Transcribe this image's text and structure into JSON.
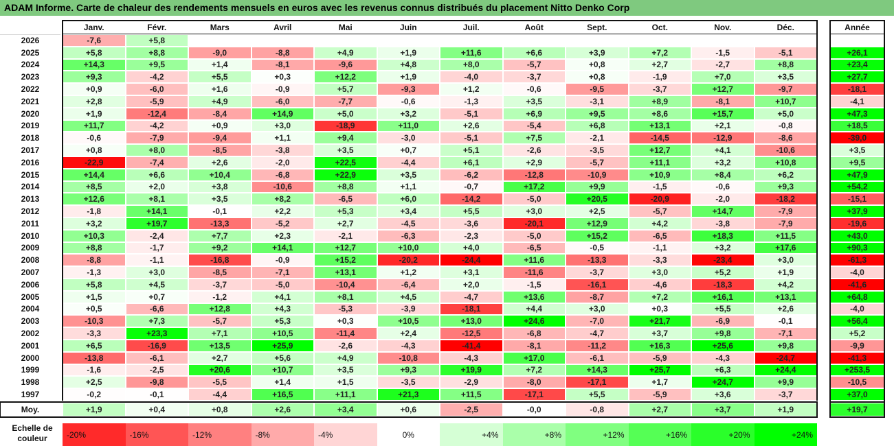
{
  "title": "ADAM Informe. Carte de chaleur des rendements mensuels en euros avec les revenus connus distribués du placement Nitto Denko Corp",
  "chart_data": {
    "type": "heatmap",
    "columns": [
      "Janv.",
      "Févr.",
      "Mars",
      "Avril",
      "Mai",
      "Juin",
      "Juil.",
      "Août",
      "Sept.",
      "Oct.",
      "Nov.",
      "Déc."
    ],
    "year_column_label": "Année",
    "avg_row_label": "Moy.",
    "rows": [
      {
        "year": "2026",
        "months": [
          "-7,6",
          "+5,8",
          "",
          "",
          "",
          "",
          "",
          "",
          "",
          "",
          "",
          ""
        ],
        "annual": ""
      },
      {
        "year": "2025",
        "months": [
          "+5,8",
          "+8,8",
          "-9,0",
          "-8,8",
          "+4,9",
          "+1,9",
          "+11,6",
          "+6,6",
          "+3,9",
          "+7,2",
          "-1,5",
          "-5,1"
        ],
        "annual": "+26,1"
      },
      {
        "year": "2024",
        "months": [
          "+14,3",
          "+9,5",
          "+1,4",
          "-8,1",
          "-9,6",
          "+4,8",
          "+8,0",
          "-5,7",
          "+0,8",
          "+2,7",
          "-2,7",
          "+8,8"
        ],
        "annual": "+23,4"
      },
      {
        "year": "2023",
        "months": [
          "+9,3",
          "-4,2",
          "+5,5",
          "+0,3",
          "+12,2",
          "+1,9",
          "-4,0",
          "-3,7",
          "+0,8",
          "-1,9",
          "+7,0",
          "+3,5"
        ],
        "annual": "+27,7"
      },
      {
        "year": "2022",
        "months": [
          "+0,9",
          "-6,0",
          "+1,6",
          "-0,9",
          "+5,7",
          "-9,3",
          "+1,2",
          "-0,6",
          "-9,5",
          "-3,7",
          "+12,7",
          "-9,7"
        ],
        "annual": "-18,1"
      },
      {
        "year": "2021",
        "months": [
          "+2,8",
          "-5,9",
          "+4,9",
          "-6,0",
          "-7,7",
          "-0,6",
          "-1,3",
          "+3,5",
          "-3,1",
          "+8,9",
          "-8,1",
          "+10,7"
        ],
        "annual": "-4,1"
      },
      {
        "year": "2020",
        "months": [
          "+1,9",
          "-12,4",
          "-8,4",
          "+14,9",
          "+5,0",
          "+3,2",
          "-5,1",
          "+6,9",
          "+9,5",
          "+8,6",
          "+15,7",
          "+5,0"
        ],
        "annual": "+47,3"
      },
      {
        "year": "2019",
        "months": [
          "+11,7",
          "-4,2",
          "+0,9",
          "+3,0",
          "-18,9",
          "+11,0",
          "+2,6",
          "-5,4",
          "+6,8",
          "+13,1",
          "+2,1",
          "-0,8"
        ],
        "annual": "+18,5"
      },
      {
        "year": "2018",
        "months": [
          "-0,6",
          "-7,9",
          "-9,4",
          "+1,1",
          "+9,4",
          "-3,0",
          "-5,1",
          "+7,5",
          "-2,1",
          "-14,5",
          "-12,9",
          "-8,6"
        ],
        "annual": "-39,0"
      },
      {
        "year": "2017",
        "months": [
          "+0,8",
          "+8,0",
          "-8,5",
          "-3,8",
          "+3,5",
          "+0,7",
          "+5,1",
          "-2,6",
          "-3,5",
          "+12,7",
          "+4,1",
          "-10,6"
        ],
        "annual": "+3,5"
      },
      {
        "year": "2016",
        "months": [
          "-22,9",
          "-7,4",
          "+2,6",
          "-2,0",
          "+22,5",
          "-4,4",
          "+6,1",
          "+2,9",
          "-5,7",
          "+11,1",
          "+3,2",
          "+10,8"
        ],
        "annual": "+9,5"
      },
      {
        "year": "2015",
        "months": [
          "+14,4",
          "+6,6",
          "+10,4",
          "-6,8",
          "+22,9",
          "+3,5",
          "-6,2",
          "-12,8",
          "-10,9",
          "+10,9",
          "+8,4",
          "+6,2"
        ],
        "annual": "+47,9"
      },
      {
        "year": "2014",
        "months": [
          "+8,5",
          "+2,0",
          "+3,8",
          "-10,6",
          "+8,8",
          "+1,1",
          "-0,7",
          "+17,2",
          "+9,9",
          "-1,5",
          "-0,6",
          "+9,3"
        ],
        "annual": "+54,2"
      },
      {
        "year": "2013",
        "months": [
          "+12,6",
          "+8,1",
          "+3,5",
          "+8,2",
          "-6,5",
          "+6,0",
          "-14,2",
          "-5,0",
          "+20,5",
          "-20,9",
          "-2,0",
          "-18,2"
        ],
        "annual": "-15,1"
      },
      {
        "year": "2012",
        "months": [
          "-1,8",
          "+14,1",
          "-0,1",
          "+2,2",
          "+5,3",
          "+3,4",
          "+5,5",
          "+3,0",
          "+2,5",
          "-5,7",
          "+14,7",
          "-7,9"
        ],
        "annual": "+37,9"
      },
      {
        "year": "2011",
        "months": [
          "+3,2",
          "+19,7",
          "-13,3",
          "-5,2",
          "+2,7",
          "-4,5",
          "-3,6",
          "-20,1",
          "+12,9",
          "+4,2",
          "-3,8",
          "-7,9"
        ],
        "annual": "-19,6"
      },
      {
        "year": "2010",
        "months": [
          "+10,3",
          "-2,4",
          "+7,7",
          "+2,3",
          "-2,1",
          "-6,3",
          "-2,3",
          "-5,0",
          "+15,2",
          "-6,5",
          "+18,3",
          "+11,5"
        ],
        "annual": "+43,0"
      },
      {
        "year": "2009",
        "months": [
          "+8,8",
          "-1,7",
          "+9,2",
          "+14,1",
          "+12,7",
          "+10,0",
          "+4,0",
          "-6,5",
          "-0,5",
          "-1,1",
          "+3,2",
          "+17,6"
        ],
        "annual": "+90,3"
      },
      {
        "year": "2008",
        "months": [
          "-8,8",
          "-1,1",
          "-16,8",
          "-0,9",
          "+15,2",
          "-20,2",
          "-24,4",
          "+11,6",
          "-13,3",
          "-3,3",
          "-23,4",
          "+3,0"
        ],
        "annual": "-61,3"
      },
      {
        "year": "2007",
        "months": [
          "-1,3",
          "+3,0",
          "-8,5",
          "-7,1",
          "+13,1",
          "+1,2",
          "+3,1",
          "-11,6",
          "-3,7",
          "+3,0",
          "+5,2",
          "+1,9"
        ],
        "annual": "-4,0"
      },
      {
        "year": "2006",
        "months": [
          "+5,8",
          "+4,5",
          "-3,7",
          "-5,0",
          "-10,4",
          "-6,4",
          "+2,0",
          "-1,5",
          "-16,1",
          "-4,6",
          "-18,3",
          "+4,2"
        ],
        "annual": "-41,6"
      },
      {
        "year": "2005",
        "months": [
          "+1,5",
          "+0,7",
          "-1,2",
          "+4,1",
          "+8,1",
          "+4,5",
          "-4,7",
          "+13,6",
          "-8,7",
          "+7,2",
          "+16,1",
          "+13,1"
        ],
        "annual": "+64,8"
      },
      {
        "year": "2004",
        "months": [
          "+0,5",
          "-6,6",
          "+12,8",
          "+4,3",
          "-5,3",
          "-3,9",
          "-18,1",
          "+4,4",
          "+3,0",
          "+0,3",
          "+5,5",
          "+2,6"
        ],
        "annual": "-4,0"
      },
      {
        "year": "2003",
        "months": [
          "-10,3",
          "+7,3",
          "-5,7",
          "+5,3",
          "+0,3",
          "+10,5",
          "+13,0",
          "+24,6",
          "-7,0",
          "+21,7",
          "-6,9",
          "-0,1"
        ],
        "annual": "+56,4"
      },
      {
        "year": "2002",
        "months": [
          "-3,3",
          "+23,3",
          "+7,1",
          "+10,5",
          "-11,4",
          "+2,4",
          "-12,5",
          "-6,8",
          "-4,7",
          "+3,7",
          "+9,8",
          "-7,1"
        ],
        "annual": "+5,2"
      },
      {
        "year": "2001",
        "months": [
          "+6,5",
          "-16,9",
          "+13,5",
          "+25,9",
          "-2,6",
          "-4,3",
          "-41,4",
          "-8,1",
          "-11,2",
          "+16,3",
          "+25,6",
          "+9,8"
        ],
        "annual": "-9,9"
      },
      {
        "year": "2000",
        "months": [
          "-13,8",
          "-6,1",
          "+2,7",
          "+5,6",
          "+4,9",
          "-10,8",
          "-4,3",
          "+17,0",
          "-6,1",
          "-5,9",
          "-4,3",
          "-24,7"
        ],
        "annual": "-41,3"
      },
      {
        "year": "1999",
        "months": [
          "-1,6",
          "-2,5",
          "+20,6",
          "+10,7",
          "+3,5",
          "+9,3",
          "+19,9",
          "+7,2",
          "+14,3",
          "+25,7",
          "+6,3",
          "+24,4"
        ],
        "annual": "+253,5"
      },
      {
        "year": "1998",
        "months": [
          "+2,5",
          "-9,8",
          "-5,5",
          "+1,4",
          "+1,5",
          "-3,5",
          "-2,9",
          "-8,0",
          "-17,1",
          "+1,7",
          "+24,7",
          "+9,9"
        ],
        "annual": "-10,5"
      },
      {
        "year": "1997",
        "months": [
          "-0,2",
          "-0,1",
          "-4,4",
          "+16,5",
          "+11,1",
          "+21,3",
          "+11,5",
          "-17,1",
          "+5,5",
          "-5,9",
          "+3,6",
          "-3,7"
        ],
        "annual": "+37,0"
      }
    ],
    "averages": {
      "months": [
        "+1,9",
        "+0,4",
        "+0,8",
        "+2,6",
        "+3,4",
        "+0,6",
        "-2,5",
        "-0,0",
        "-0,8",
        "+2,7",
        "+3,7",
        "+1,9"
      ],
      "annual": "+19,7"
    },
    "color_scale": {
      "label": "Echelle de couleur",
      "steps": [
        "-20%",
        "-16%",
        "-12%",
        "-8%",
        "-4%",
        "0%",
        "+4%",
        "+8%",
        "+12%",
        "+16%",
        "+20%",
        "+24%"
      ],
      "negative_color": "#ff0000",
      "positive_color": "#00ff00",
      "neutral_color": "#ffffff"
    }
  }
}
